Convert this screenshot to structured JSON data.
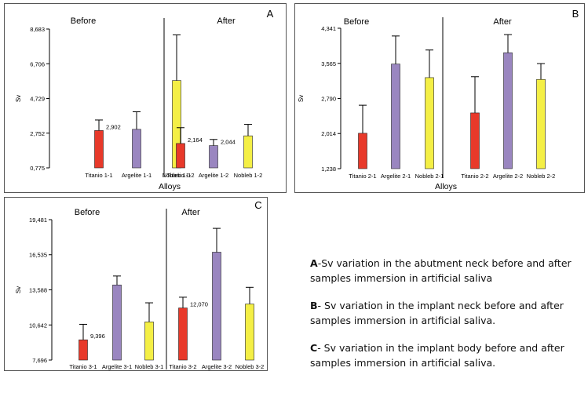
{
  "chart_data": [
    {
      "id": "A",
      "type": "bar",
      "panel_letter": "A",
      "ylabel": "Sv",
      "xlabel": "Alloys",
      "ylim": [
        0.775,
        8.683
      ],
      "yticks": [
        "8,683",
        "6,706",
        "4,729",
        "2,752",
        "0,775"
      ],
      "ytick_values": [
        8.683,
        6.706,
        4.729,
        2.752,
        0.775
      ],
      "group_labels": [
        "Before",
        "After"
      ],
      "categories": [
        "Titanio 1-1",
        "Argelite 1-1",
        "Nobleb 1-1",
        "Titanio 1-2",
        "Argelite 1-2",
        "Nobleb 1-2"
      ],
      "values": [
        2.902,
        2.97,
        5.75,
        2.164,
        2.044,
        2.6
      ],
      "errors": [
        0.6,
        1.0,
        2.6,
        0.9,
        0.35,
        0.65
      ],
      "bar_colors": [
        "#e8392a",
        "#9a86c0",
        "#f4ef45",
        "#e8392a",
        "#9a86c0",
        "#f4ef45"
      ],
      "data_labels": [
        "2,902",
        "",
        "",
        "2,164",
        "2,044",
        ""
      ]
    },
    {
      "id": "B",
      "type": "bar",
      "panel_letter": "B",
      "ylabel": "Sv",
      "xlabel": "Alloys",
      "ylim": [
        1.238,
        4.341
      ],
      "yticks": [
        "4,341",
        "3,565",
        "2,790",
        "2,014",
        "1,238"
      ],
      "ytick_values": [
        4.341,
        3.565,
        2.79,
        2.014,
        1.238
      ],
      "group_labels": [
        "Before",
        "After"
      ],
      "categories": [
        "Titanio 2-1",
        "Argelite 2-1",
        "Nobleb 2-1",
        "Titanio 2-2",
        "Argelite 2-2",
        "Nobleb 2-2"
      ],
      "values": [
        2.02,
        3.55,
        3.25,
        2.47,
        3.8,
        3.21
      ],
      "errors": [
        0.62,
        0.62,
        0.61,
        0.8,
        0.4,
        0.35
      ],
      "bar_colors": [
        "#e8392a",
        "#9a86c0",
        "#f4ef45",
        "#e8392a",
        "#9a86c0",
        "#f4ef45"
      ],
      "data_labels": [
        "",
        "",
        "",
        "",
        "",
        ""
      ]
    },
    {
      "id": "C",
      "type": "bar",
      "panel_letter": "C",
      "ylabel": "Sv",
      "xlabel": "Alloys",
      "ylim": [
        7.696,
        19.481
      ],
      "yticks": [
        "19,481",
        "16,535",
        "13,588",
        "10,642",
        "7,696"
      ],
      "ytick_values": [
        19.481,
        16.535,
        13.588,
        10.642,
        7.696
      ],
      "group_labels": [
        "Before",
        "After"
      ],
      "categories": [
        "Titanio 3-1",
        "Argelite 3-1",
        "Nobleb 3-1",
        "Titanio 3-2",
        "Argelite 3-2",
        "Nobleb 3-2"
      ],
      "values": [
        9.396,
        14.0,
        10.9,
        12.07,
        16.75,
        12.4
      ],
      "errors": [
        1.3,
        0.75,
        1.6,
        0.9,
        2.0,
        1.4
      ],
      "bar_colors": [
        "#e8392a",
        "#9a86c0",
        "#f4ef45",
        "#e8392a",
        "#9a86c0",
        "#f4ef45"
      ],
      "data_labels": [
        "9,396",
        "",
        "",
        "12,070",
        "",
        ""
      ]
    }
  ],
  "legend": {
    "a_letter": "A",
    "a_text": "-Sv variation in the abutment  neck before and after samples immersion in artificial saliva",
    "b_letter": "B",
    "b_text": "- Sv variation  in  the  implant  neck before and after samples immersion in artificial saliva.",
    "c_letter": "C",
    "c_text": "- Sv  variation in the implant  body before and after samples immersion in artificial saliva."
  }
}
